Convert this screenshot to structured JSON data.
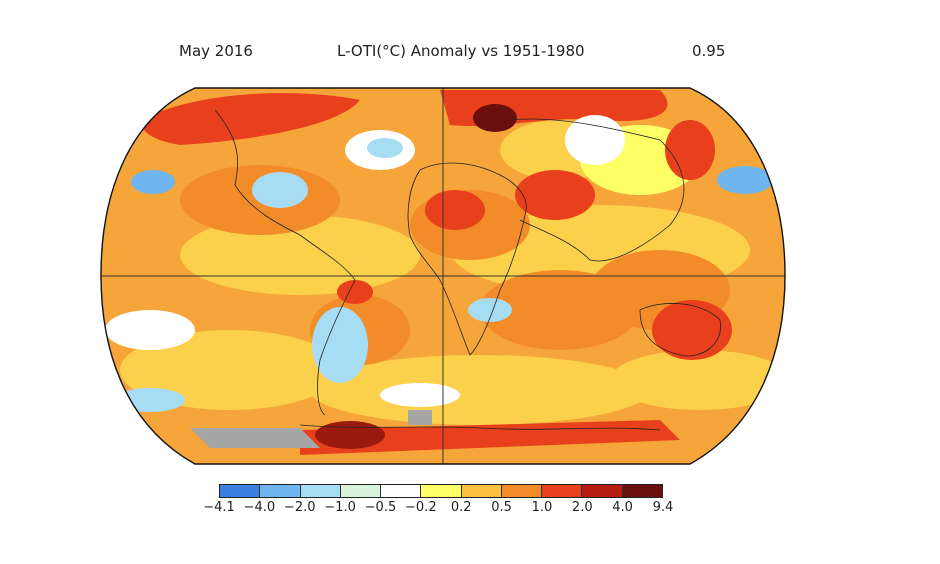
{
  "header": {
    "left": "May 2016",
    "center": "L-OTI(°C) Anomaly vs 1951-1980",
    "right": "0.95"
  },
  "legend": {
    "colors": [
      "#8a2be2",
      "#3b7fe0",
      "#6fb6f0",
      "#a7dcf5",
      "#d8f3dc",
      "#ffffff",
      "#ffff66",
      "#fcc13f",
      "#f28c28",
      "#e8401c",
      "#b61d12",
      "#6a0e0e"
    ],
    "ticks": [
      "−4.1",
      "−4.0",
      "−2.0",
      "−1.0",
      "−0.5",
      "−0.2",
      "0.2",
      "0.5",
      "1.0",
      "2.0",
      "4.0",
      "9.4"
    ]
  },
  "map": {
    "base_color": "#f6a53a",
    "no_data_color": "#a6a6a6"
  }
}
